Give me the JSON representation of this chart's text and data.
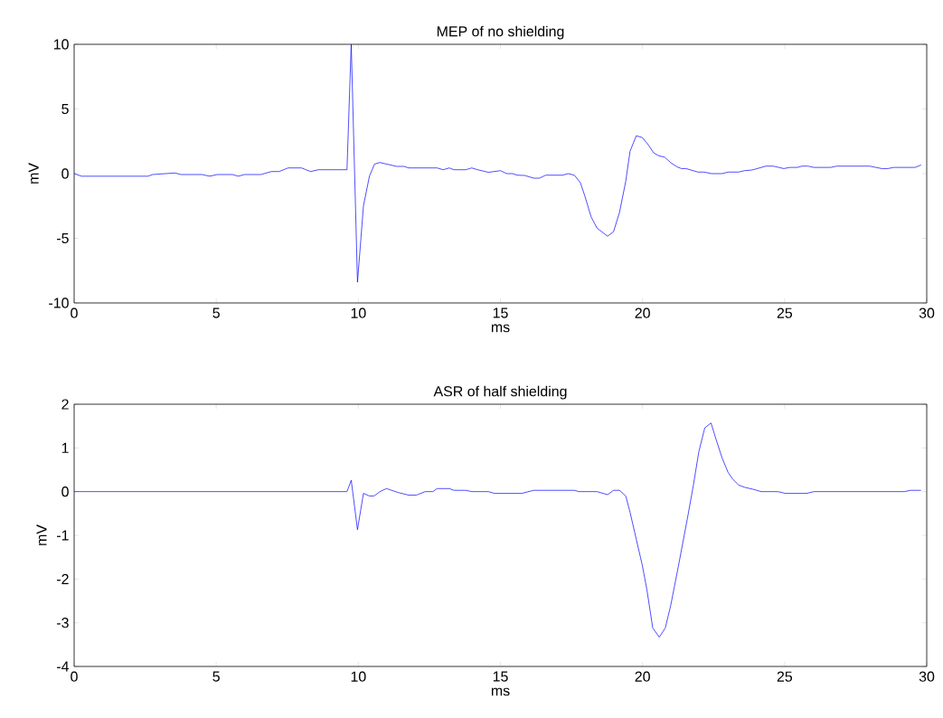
{
  "chart_data": [
    {
      "type": "line",
      "title": "MEP of no shielding",
      "xlabel": "ms",
      "ylabel": "mV",
      "color": "#0000ff",
      "xlim": [
        0,
        30
      ],
      "xticks": [
        0,
        5,
        10,
        15,
        20,
        25,
        30
      ],
      "ylim": [
        -10,
        10
      ],
      "yticks": [
        -10,
        -5,
        0,
        5,
        10
      ],
      "x": [
        0,
        0.26,
        2.6,
        2.76,
        3.55,
        3.76,
        4.5,
        4.77,
        5.03,
        5.57,
        5.78,
        5.99,
        6.57,
        6.94,
        7.21,
        7.53,
        8.0,
        8.32,
        8.59,
        9.6,
        9.75,
        9.97,
        10.18,
        10.39,
        10.57,
        10.76,
        11.34,
        11.61,
        11.77,
        12.77,
        12.99,
        13.2,
        13.36,
        13.78,
        13.99,
        14.2,
        14.58,
        15.0,
        15.22,
        15.43,
        15.59,
        15.85,
        16.17,
        16.38,
        16.59,
        17.18,
        17.39,
        17.6,
        17.81,
        17.97,
        18.19,
        18.4,
        18.77,
        18.98,
        19.19,
        19.41,
        19.56,
        19.78,
        19.99,
        20.2,
        20.39,
        20.57,
        20.78,
        20.99,
        21.21,
        21.37,
        21.53,
        21.95,
        22.16,
        22.43,
        22.8,
        23.01,
        23.38,
        23.59,
        23.86,
        24.34,
        24.6,
        24.97,
        25.18,
        25.45,
        25.61,
        25.82,
        26.03,
        26.62,
        26.83,
        27.99,
        28.42,
        28.63,
        28.84,
        29.59,
        29.8
      ],
      "values": [
        0,
        -0.2,
        -0.2,
        -0.07,
        0.05,
        -0.07,
        -0.07,
        -0.2,
        -0.07,
        -0.07,
        -0.2,
        -0.07,
        -0.07,
        0.16,
        0.16,
        0.44,
        0.44,
        0.16,
        0.3,
        0.3,
        10,
        -8.4,
        -2.5,
        -0.2,
        0.74,
        0.86,
        0.56,
        0.56,
        0.44,
        0.44,
        0.3,
        0.44,
        0.3,
        0.3,
        0.44,
        0.3,
        0.1,
        0.23,
        0,
        0,
        -0.12,
        -0.14,
        -0.35,
        -0.35,
        -0.12,
        -0.12,
        0,
        -0.12,
        -0.69,
        -1.73,
        -3.34,
        -4.22,
        -4.84,
        -4.49,
        -3.0,
        -0.58,
        1.73,
        2.93,
        2.79,
        2.24,
        1.61,
        1.38,
        1.27,
        0.85,
        0.53,
        0.39,
        0.39,
        0.12,
        0.12,
        0,
        0,
        0.12,
        0.12,
        0.23,
        0.28,
        0.58,
        0.58,
        0.39,
        0.48,
        0.48,
        0.58,
        0.58,
        0.48,
        0.48,
        0.58,
        0.58,
        0.39,
        0.39,
        0.48,
        0.48,
        0.67
      ]
    },
    {
      "type": "line",
      "title": "ASR of half shielding",
      "xlabel": "ms",
      "ylabel": "mV",
      "color": "#0000ff",
      "xlim": [
        0,
        30
      ],
      "xticks": [
        0,
        5,
        10,
        15,
        20,
        25,
        30
      ],
      "ylim": [
        -4,
        2
      ],
      "yticks": [
        -4,
        -3,
        -2,
        -1,
        0,
        1,
        2
      ],
      "x": [
        0,
        9.6,
        9.75,
        9.97,
        10.18,
        10.39,
        10.55,
        10.76,
        10.99,
        11.4,
        11.77,
        12.04,
        12.35,
        12.62,
        12.77,
        13.2,
        13.36,
        13.78,
        13.99,
        14.58,
        14.79,
        15.75,
        16.17,
        17.6,
        17.76,
        18.4,
        18.77,
        18.98,
        19.19,
        19.41,
        19.56,
        19.78,
        19.99,
        20.15,
        20.36,
        20.59,
        20.8,
        20.99,
        21.26,
        21.58,
        21.79,
        21.98,
        22.19,
        22.41,
        22.59,
        22.8,
        23.01,
        23.17,
        23.38,
        23.59,
        23.91,
        24.18,
        24.76,
        25.03,
        25.77,
        26.03,
        29.21,
        29.43,
        29.8
      ],
      "values": [
        0,
        0,
        0.26,
        -0.87,
        -0.04,
        -0.1,
        -0.1,
        0,
        0.07,
        -0.02,
        -0.08,
        -0.08,
        0,
        0,
        0.07,
        0.07,
        0.03,
        0.03,
        0,
        0,
        -0.04,
        -0.04,
        0.03,
        0.03,
        0,
        0,
        -0.07,
        0.03,
        0.03,
        -0.1,
        -0.47,
        -1.09,
        -1.68,
        -2.23,
        -3.12,
        -3.33,
        -3.12,
        -2.61,
        -1.71,
        -0.61,
        0.15,
        0.91,
        1.46,
        1.57,
        1.19,
        0.77,
        0.44,
        0.29,
        0.15,
        0.1,
        0.05,
        0,
        0,
        -0.04,
        -0.04,
        0,
        0,
        0.03,
        0.03
      ]
    }
  ]
}
